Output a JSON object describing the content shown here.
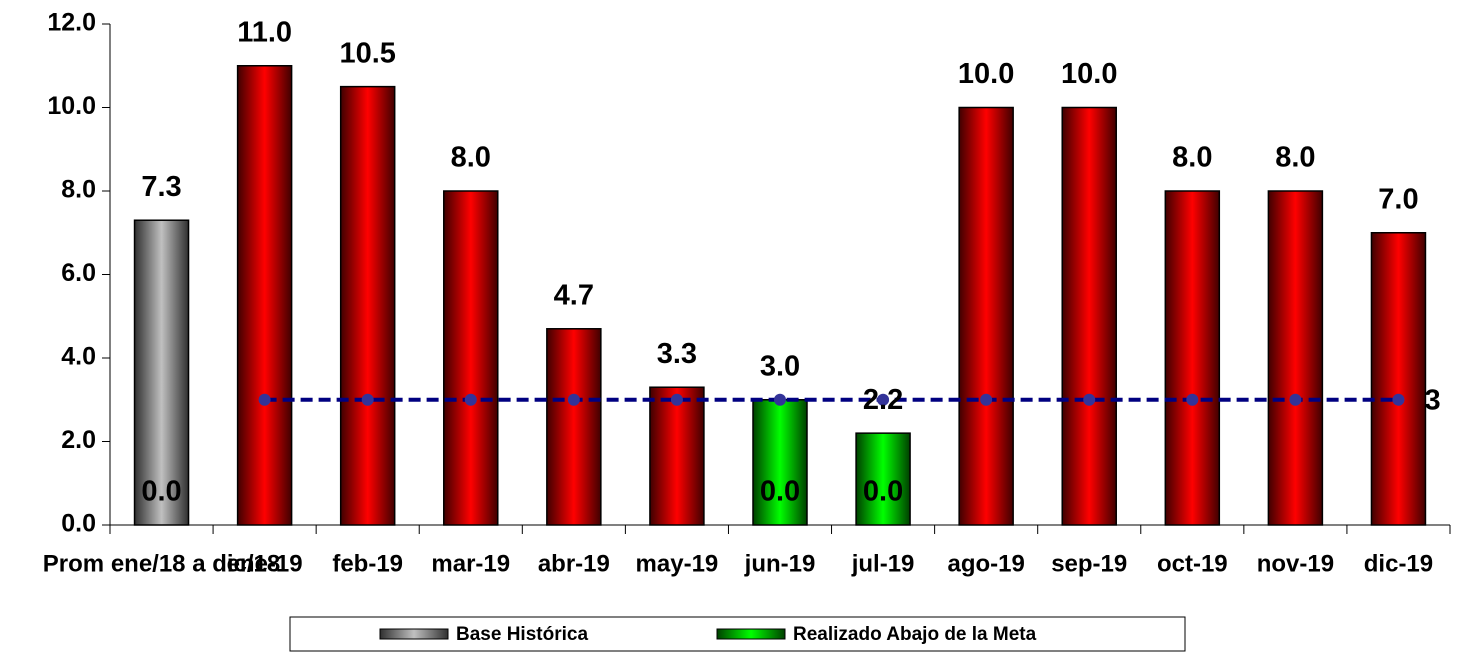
{
  "chart_data": {
    "type": "bar",
    "categories": [
      "Prom ene/18 a dic/18",
      "ene-19",
      "feb-19",
      "mar-19",
      "abr-19",
      "may-19",
      "jun-19",
      "jul-19",
      "ago-19",
      "sep-19",
      "oct-19",
      "nov-19",
      "dic-19"
    ],
    "ylim": [
      0,
      12
    ],
    "yticks": [
      {
        "value": 0,
        "label": "0.0"
      },
      {
        "value": 2,
        "label": "2.0"
      },
      {
        "value": 4,
        "label": "4.0"
      },
      {
        "value": 6,
        "label": "6.0"
      },
      {
        "value": 8,
        "label": "8.0"
      },
      {
        "value": 10,
        "label": "10.0"
      },
      {
        "value": 12,
        "label": "12.0"
      }
    ],
    "series": [
      {
        "name": "Base Histórica",
        "color": "#c0c0c0",
        "label_color": "#808080",
        "values": [
          7.3,
          null,
          null,
          null,
          null,
          null,
          null,
          null,
          null,
          null,
          null,
          null,
          null
        ],
        "value_labels": [
          "7.3",
          null,
          null,
          null,
          null,
          null,
          null,
          null,
          null,
          null,
          null,
          null,
          null
        ]
      },
      {
        "color": "#ff0000",
        "label_color": "#ff0000",
        "values": [
          0,
          11,
          10.5,
          8,
          4.7,
          3.3,
          0,
          0,
          10,
          10,
          8,
          8,
          7
        ],
        "value_labels": [
          "0.0",
          "11.0",
          "10.5",
          "8.0",
          "4.7",
          "3.3",
          "0.0",
          "0.0",
          "10.0",
          "10.0",
          "8.0",
          "8.0",
          "7.0"
        ]
      },
      {
        "name": "Realizado Abajo de la Meta",
        "color": "#00ff00",
        "label_color": "#004d00",
        "values": [
          null,
          null,
          null,
          null,
          null,
          null,
          3,
          2.2,
          null,
          null,
          null,
          null,
          null
        ],
        "value_labels": [
          null,
          null,
          null,
          null,
          null,
          null,
          "3.0",
          "2.2",
          null,
          null,
          null,
          null,
          null
        ]
      },
      {
        "type": "line",
        "color": "#000080",
        "marker_color": "#333399",
        "label_color": "#000080",
        "dashed": true,
        "data_labels": "last",
        "values": [
          null,
          3,
          3,
          3,
          3,
          3,
          3,
          3,
          3,
          3,
          3,
          3,
          3
        ]
      }
    ]
  }
}
